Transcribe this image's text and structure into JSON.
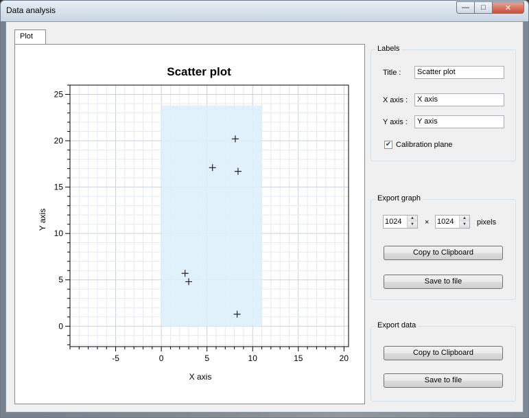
{
  "window": {
    "title": "Data analysis"
  },
  "tabs": [
    {
      "label": "Plot"
    }
  ],
  "labels_group": {
    "title": "Labels",
    "title_label": "Title :",
    "title_value": "Scatter plot",
    "xaxis_label": "X axis :",
    "xaxis_value": "X axis",
    "yaxis_label": "Y axis :",
    "yaxis_value": "Y axis",
    "calibration_label": "Calibration plane",
    "calibration_checked": true
  },
  "export_graph": {
    "title": "Export graph",
    "width": "1024",
    "height": "1024",
    "times": "×",
    "unit": "pixels",
    "copy_label": "Copy to Clipboard",
    "save_label": "Save to file"
  },
  "export_data": {
    "title": "Export data",
    "copy_label": "Copy to Clipboard",
    "save_label": "Save to file"
  },
  "colors": {
    "calibration_plane": "#dceefb",
    "grid_major": "#c9cfe0",
    "grid_minor": "#e6e9f1"
  },
  "chart_data": {
    "type": "scatter",
    "title": "Scatter plot",
    "xlabel": "X axis",
    "ylabel": "Y axis",
    "xlim": [
      -10,
      20.5
    ],
    "ylim": [
      -2.2,
      26
    ],
    "xticks": [
      -5,
      0,
      5,
      10,
      15,
      20
    ],
    "yticks": [
      0,
      5,
      10,
      15,
      20,
      25
    ],
    "grid": true,
    "calibration_plane": {
      "x": [
        0,
        11
      ],
      "y": [
        0,
        23.8
      ]
    },
    "points": [
      {
        "x": 8.1,
        "y": 20.2
      },
      {
        "x": 5.6,
        "y": 17.1
      },
      {
        "x": 8.4,
        "y": 16.7
      },
      {
        "x": 2.6,
        "y": 5.7
      },
      {
        "x": 3.0,
        "y": 4.8
      },
      {
        "x": 8.3,
        "y": 1.3
      }
    ]
  }
}
